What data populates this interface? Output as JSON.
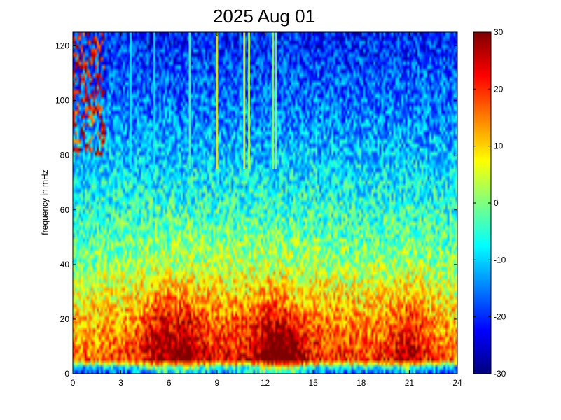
{
  "chart_data": {
    "type": "heatmap",
    "title": "2025 Aug 01",
    "xlabel": "",
    "ylabel": "frequency in mHz",
    "xlim": [
      0,
      24
    ],
    "ylim": [
      0,
      125
    ],
    "x_ticks": [
      0,
      3,
      6,
      9,
      12,
      15,
      18,
      21,
      24
    ],
    "y_ticks": [
      0,
      20,
      40,
      60,
      80,
      100,
      120
    ],
    "colorbar": {
      "colormap": "jet",
      "range": [
        -30,
        30
      ],
      "ticks": [
        30,
        20,
        10,
        0,
        -10,
        -20,
        -30
      ]
    },
    "x_resolution_hours": 0.125,
    "y_resolution_mHz": 1.5,
    "intensity_profile": [
      {
        "frequency_mHz": 0,
        "level_dB": -18
      },
      {
        "frequency_mHz": 2,
        "level_dB": -12
      },
      {
        "frequency_mHz": 5,
        "level_dB": 20
      },
      {
        "frequency_mHz": 10,
        "level_dB": 17
      },
      {
        "frequency_mHz": 20,
        "level_dB": 13
      },
      {
        "frequency_mHz": 30,
        "level_dB": 7
      },
      {
        "frequency_mHz": 40,
        "level_dB": 1
      },
      {
        "frequency_mHz": 60,
        "level_dB": -5
      },
      {
        "frequency_mHz": 80,
        "level_dB": -11
      },
      {
        "frequency_mHz": 100,
        "level_dB": -16
      },
      {
        "frequency_mHz": 125,
        "level_dB": -21
      }
    ],
    "daytime_enhancement": [
      {
        "time_h": 0,
        "delta_dB": -4
      },
      {
        "time_h": 3,
        "delta_dB": 0
      },
      {
        "time_h": 5,
        "delta_dB": 4
      },
      {
        "time_h": 7,
        "delta_dB": 5
      },
      {
        "time_h": 10,
        "delta_dB": 5
      },
      {
        "time_h": 13,
        "delta_dB": 6
      },
      {
        "time_h": 16,
        "delta_dB": 2
      },
      {
        "time_h": 19,
        "delta_dB": 1
      },
      {
        "time_h": 21,
        "delta_dB": 3
      },
      {
        "time_h": 23,
        "delta_dB": -1
      },
      {
        "time_h": 24,
        "delta_dB": -4
      }
    ],
    "low_frequency_events": [
      {
        "time_h": 5.5,
        "peak_frequency_mHz": 25,
        "level_dB": 24
      },
      {
        "time_h": 7.0,
        "peak_frequency_mHz": 22,
        "level_dB": 25
      },
      {
        "time_h": 12.3,
        "peak_frequency_mHz": 24,
        "level_dB": 26
      },
      {
        "time_h": 13.5,
        "peak_frequency_mHz": 15,
        "level_dB": 27
      },
      {
        "time_h": 21.0,
        "peak_frequency_mHz": 22,
        "level_dB": 24
      }
    ],
    "high_frequency_noise": [
      {
        "time_start_h": 0,
        "time_end_h": 2,
        "frequency_min_mHz": 80,
        "frequency_max_mHz": 125,
        "level_dB": 25
      }
    ],
    "vertical_lines": [
      {
        "time_h": 3.6,
        "level_dB": -8
      },
      {
        "time_h": 5.1,
        "level_dB": -8
      },
      {
        "time_h": 7.3,
        "level_dB": -3
      },
      {
        "time_h": 9.0,
        "level_dB": 8
      },
      {
        "time_h": 10.7,
        "level_dB": 6
      },
      {
        "time_h": 11.0,
        "level_dB": 3
      },
      {
        "time_h": 12.5,
        "level_dB": 2
      },
      {
        "time_h": 12.7,
        "level_dB": 2
      }
    ]
  }
}
